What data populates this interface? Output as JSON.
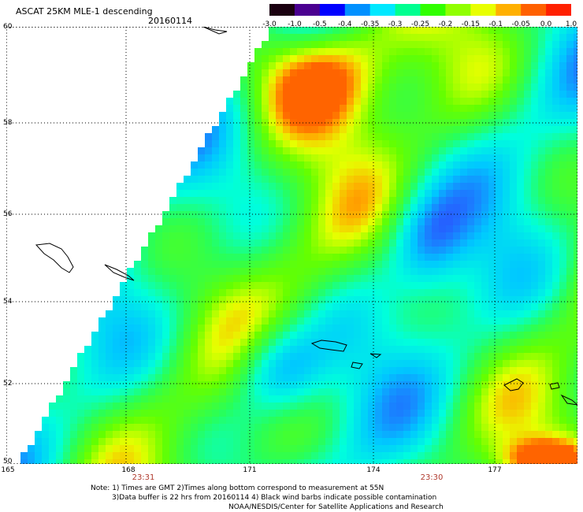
{
  "header": {
    "title": "ASCAT 25KM MLE-1 descending",
    "date": "20160114"
  },
  "colorbar": {
    "labels": [
      "-3.0",
      "-1.0",
      "-0.5",
      "-0.4",
      "-0.35",
      "-0.3",
      "-0.25",
      "-0.2",
      "-0.15",
      "-0.1",
      "-0.05",
      "0.0",
      "1.0"
    ],
    "colors": [
      "#1a0010",
      "#4a0090",
      "#0000ff",
      "#0090ff",
      "#00e8ff",
      "#00ff90",
      "#30ff00",
      "#90ff00",
      "#e8ff00",
      "#ffb000",
      "#ff6000",
      "#ff2000"
    ]
  },
  "map": {
    "lat_labels": [
      "60",
      "58",
      "56",
      "54",
      "52",
      "50"
    ],
    "lon_labels": [
      "165",
      "168",
      "171",
      "174",
      "177"
    ],
    "time_labels": [
      "23:31",
      "23:30"
    ],
    "colors": {
      "land_outline": "#000000",
      "grid": "#000000",
      "background": "#ffffff"
    }
  },
  "notes": {
    "line1": "Note: 1) Times are GMT 2)Times along bottom correspond to measurement at 55N",
    "line2": "3)Data buffer is 22 hrs from 20160114 4) Black wind barbs indicate possible contamination",
    "line3": "NOAA/NESDIS/Center for Satellite Applications and Research"
  }
}
